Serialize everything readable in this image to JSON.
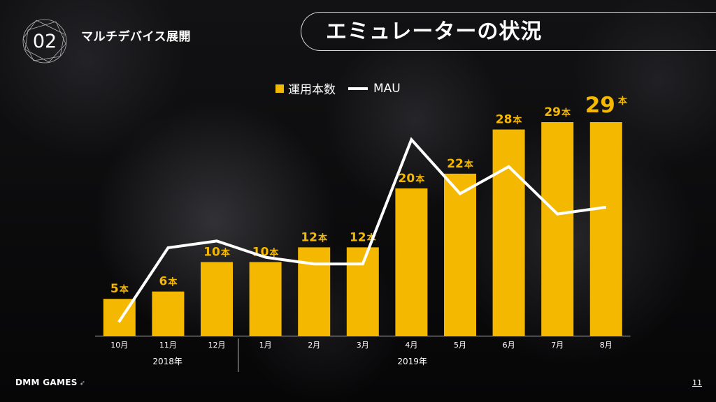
{
  "header": {
    "section_number": "02",
    "section_label": "マルチデバイス展開",
    "title": "エミュレーターの状況"
  },
  "legend": {
    "bars_label": "運用本数",
    "line_label": "MAU"
  },
  "chart_data": {
    "type": "bar",
    "title": "",
    "categories": [
      "10月",
      "11月",
      "12月",
      "1月",
      "2月",
      "3月",
      "4月",
      "5月",
      "6月",
      "7月",
      "8月"
    ],
    "year_groups": [
      "2018年",
      "2019年"
    ],
    "series": [
      {
        "name": "運用本数",
        "type": "bar",
        "values": [
          5,
          6,
          10,
          10,
          12,
          12,
          20,
          22,
          28,
          29,
          29
        ],
        "color": "#f5b800",
        "label_unit": "本"
      },
      {
        "name": "MAU",
        "type": "line",
        "values": [
          1.0,
          6.5,
          7.0,
          5.8,
          5.3,
          5.3,
          14.5,
          10.5,
          12.5,
          9.0,
          9.5
        ],
        "color": "#ffffff"
      }
    ],
    "ylim": [
      0,
      30
    ],
    "xlabel": "",
    "ylabel": "",
    "grid": false
  },
  "footer": {
    "logo": "DMM GAMES",
    "page_number": "11"
  }
}
